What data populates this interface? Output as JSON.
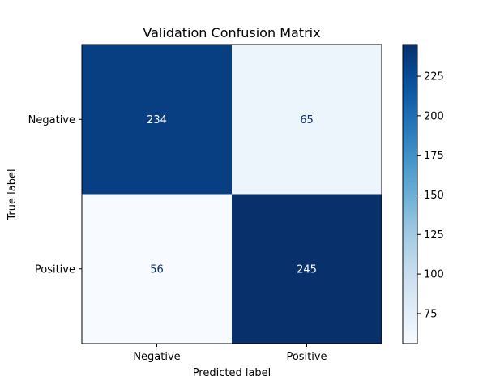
{
  "chart_data": {
    "type": "heatmap",
    "title": "Validation Confusion Matrix",
    "xlabel": "Predicted label",
    "ylabel": "True label",
    "x_categories": [
      "Negative",
      "Positive"
    ],
    "y_categories": [
      "Negative",
      "Positive"
    ],
    "values": [
      [
        234,
        65
      ],
      [
        56,
        245
      ]
    ],
    "colormap": "Blues",
    "colorbar": {
      "min": 56,
      "max": 245,
      "ticks": [
        75,
        100,
        125,
        150,
        175,
        200,
        225
      ],
      "tick_labels": [
        "75",
        "100",
        "125",
        "150",
        "175",
        "200",
        "225"
      ]
    },
    "text_colors": {
      "dark_cell": "#ffffff",
      "light_cell": "#08306b"
    }
  }
}
